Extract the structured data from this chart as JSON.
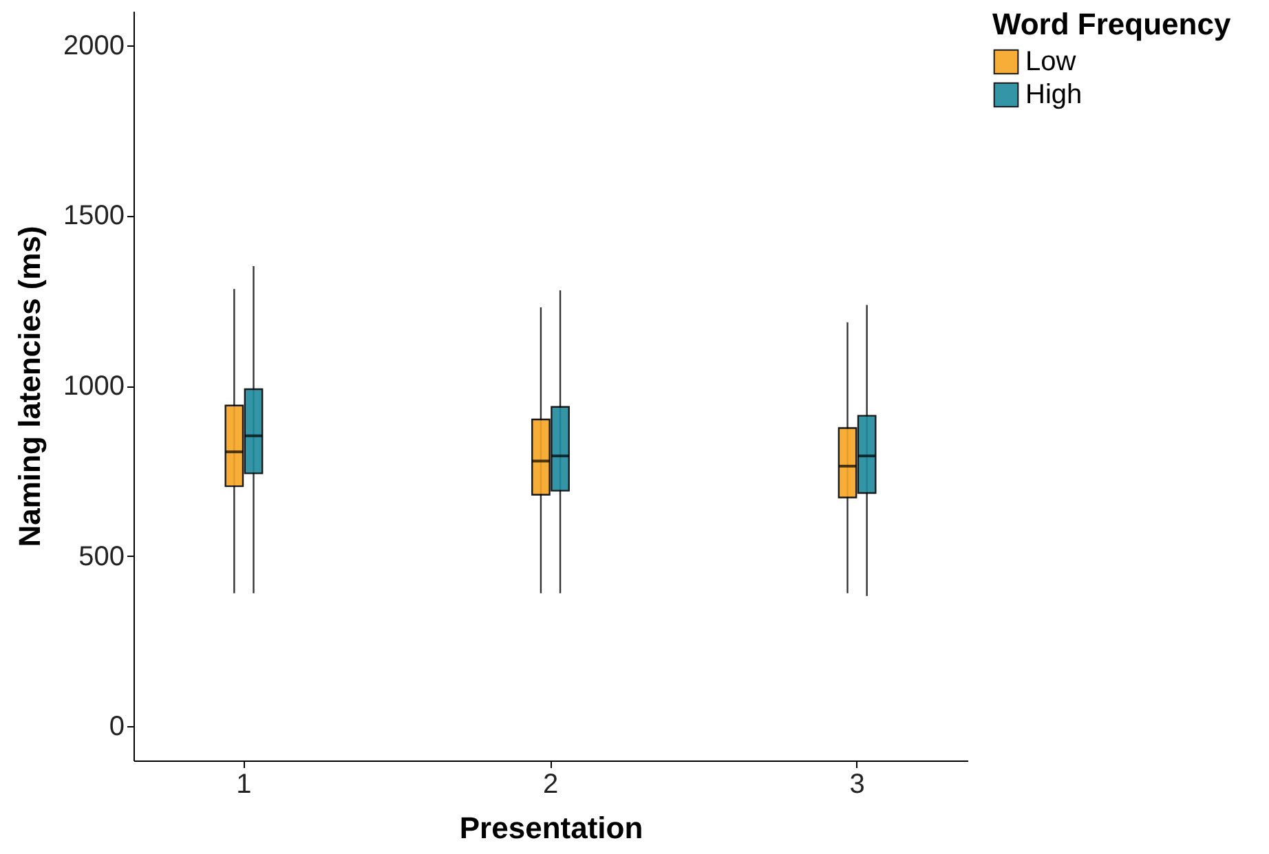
{
  "chart_data": {
    "type": "box",
    "xlabel": "Presentation",
    "ylabel": "Naming latencies (ms)",
    "legend_title": "Word Frequency",
    "legend": "right",
    "grid": false,
    "categories": [
      "1",
      "2",
      "3"
    ],
    "ylim": [
      -100,
      2100
    ],
    "yticks": [
      0,
      500,
      1000,
      1500,
      2000
    ],
    "series": [
      {
        "name": "Low",
        "color": "#f6a623",
        "boxes": [
          {
            "low": 391,
            "q1": 705,
            "median": 806,
            "q3": 942,
            "high": 1284
          },
          {
            "low": 391,
            "q1": 680,
            "median": 779,
            "q3": 901,
            "high": 1230
          },
          {
            "low": 391,
            "q1": 672,
            "median": 764,
            "q3": 876,
            "high": 1186
          }
        ]
      },
      {
        "name": "High",
        "color": "#1d8a9c",
        "boxes": [
          {
            "low": 391,
            "q1": 743,
            "median": 853,
            "q3": 990,
            "high": 1351
          },
          {
            "low": 391,
            "q1": 692,
            "median": 794,
            "q3": 938,
            "high": 1280
          },
          {
            "low": 383,
            "q1": 685,
            "median": 794,
            "q3": 912,
            "high": 1237
          }
        ]
      }
    ]
  }
}
